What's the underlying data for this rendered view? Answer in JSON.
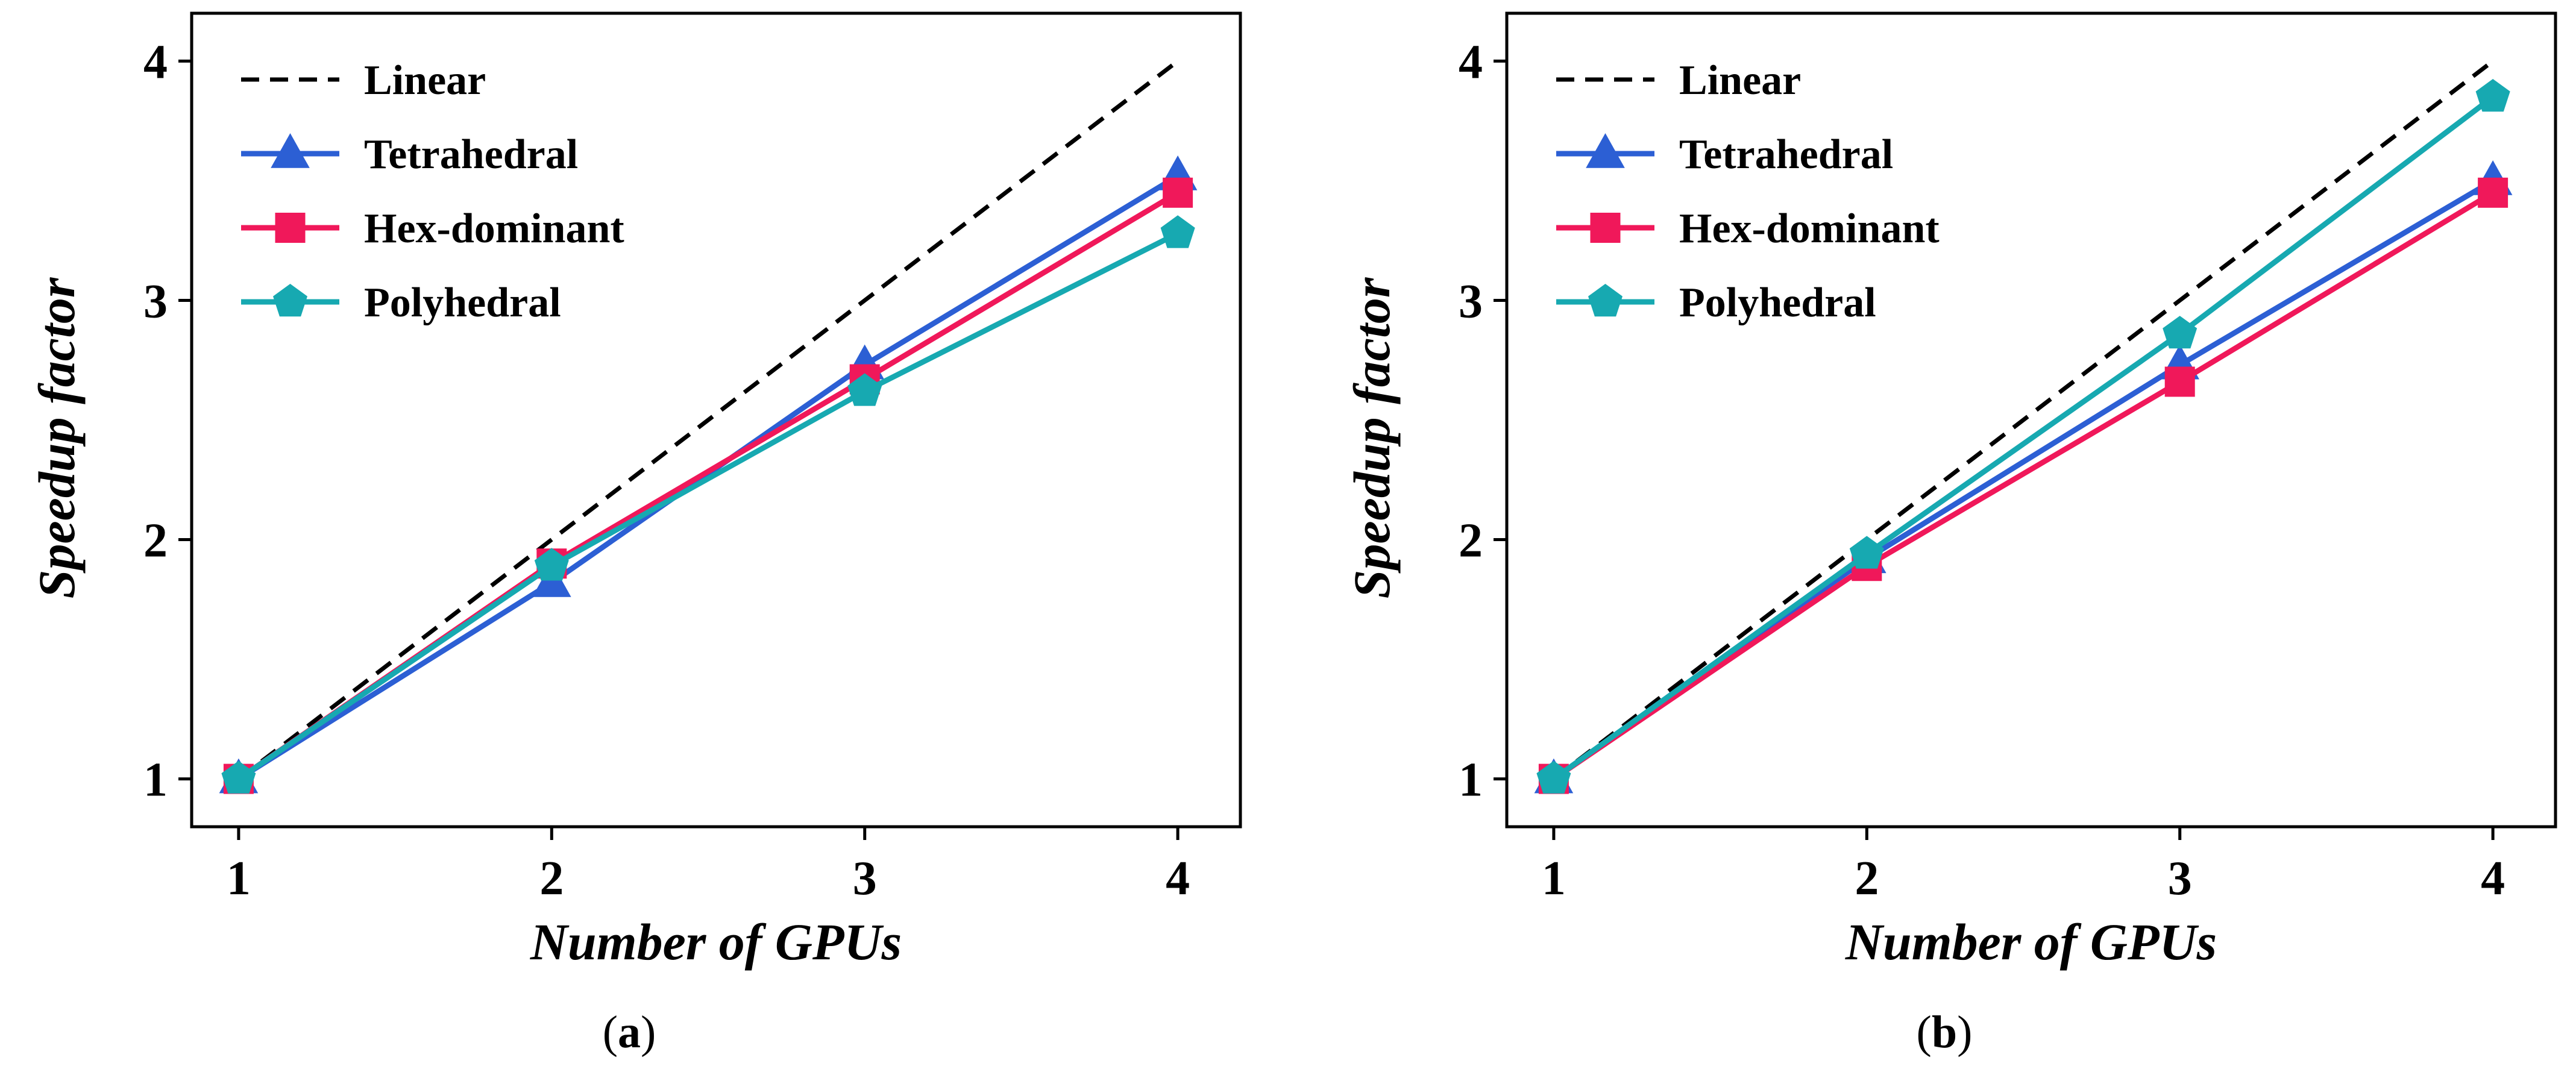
{
  "chart_data": [
    {
      "type": "line",
      "panel_label": "a",
      "caption_open": "(",
      "caption_close": ")",
      "xlabel": "Number of GPUs",
      "ylabel": "Speedup factor",
      "x": [
        1,
        2,
        3,
        4
      ],
      "xlim": [
        0.85,
        4.2
      ],
      "ylim": [
        0.8,
        4.2
      ],
      "xticks": [
        "1",
        "2",
        "3",
        "4"
      ],
      "yticks": [
        "1",
        "2",
        "3",
        "4"
      ],
      "grid": false,
      "legend_position": "top-left",
      "series": [
        {
          "name": "Linear",
          "values": [
            1,
            2,
            3,
            4
          ],
          "color": "#000000",
          "style": "dashed",
          "marker": "none"
        },
        {
          "name": "Tetrahedral",
          "values": [
            1.0,
            1.82,
            2.73,
            3.52
          ],
          "color": "#2c5fd4",
          "style": "solid",
          "marker": "triangle"
        },
        {
          "name": "Hex-dominant",
          "values": [
            1.0,
            1.9,
            2.67,
            3.45
          ],
          "color": "#f0185a",
          "style": "solid",
          "marker": "square"
        },
        {
          "name": "Polyhedral",
          "values": [
            1.0,
            1.89,
            2.62,
            3.28
          ],
          "color": "#17a9b1",
          "style": "solid",
          "marker": "pentagon"
        }
      ]
    },
    {
      "type": "line",
      "panel_label": "b",
      "caption_open": "(",
      "caption_close": ")",
      "xlabel": "Number of GPUs",
      "ylabel": "Speedup factor",
      "x": [
        1,
        2,
        3,
        4
      ],
      "xlim": [
        0.85,
        4.2
      ],
      "ylim": [
        0.8,
        4.2
      ],
      "xticks": [
        "1",
        "2",
        "3",
        "4"
      ],
      "yticks": [
        "1",
        "2",
        "3",
        "4"
      ],
      "grid": false,
      "legend_position": "top-left",
      "series": [
        {
          "name": "Linear",
          "values": [
            1,
            2,
            3,
            4
          ],
          "color": "#000000",
          "style": "dashed",
          "marker": "none"
        },
        {
          "name": "Tetrahedral",
          "values": [
            1.0,
            1.92,
            2.73,
            3.5
          ],
          "color": "#2c5fd4",
          "style": "solid",
          "marker": "triangle"
        },
        {
          "name": "Hex-dominant",
          "values": [
            1.0,
            1.89,
            2.66,
            3.45
          ],
          "color": "#f0185a",
          "style": "solid",
          "marker": "square"
        },
        {
          "name": "Polyhedral",
          "values": [
            1.0,
            1.94,
            2.86,
            3.85
          ],
          "color": "#17a9b1",
          "style": "solid",
          "marker": "pentagon"
        }
      ]
    }
  ]
}
